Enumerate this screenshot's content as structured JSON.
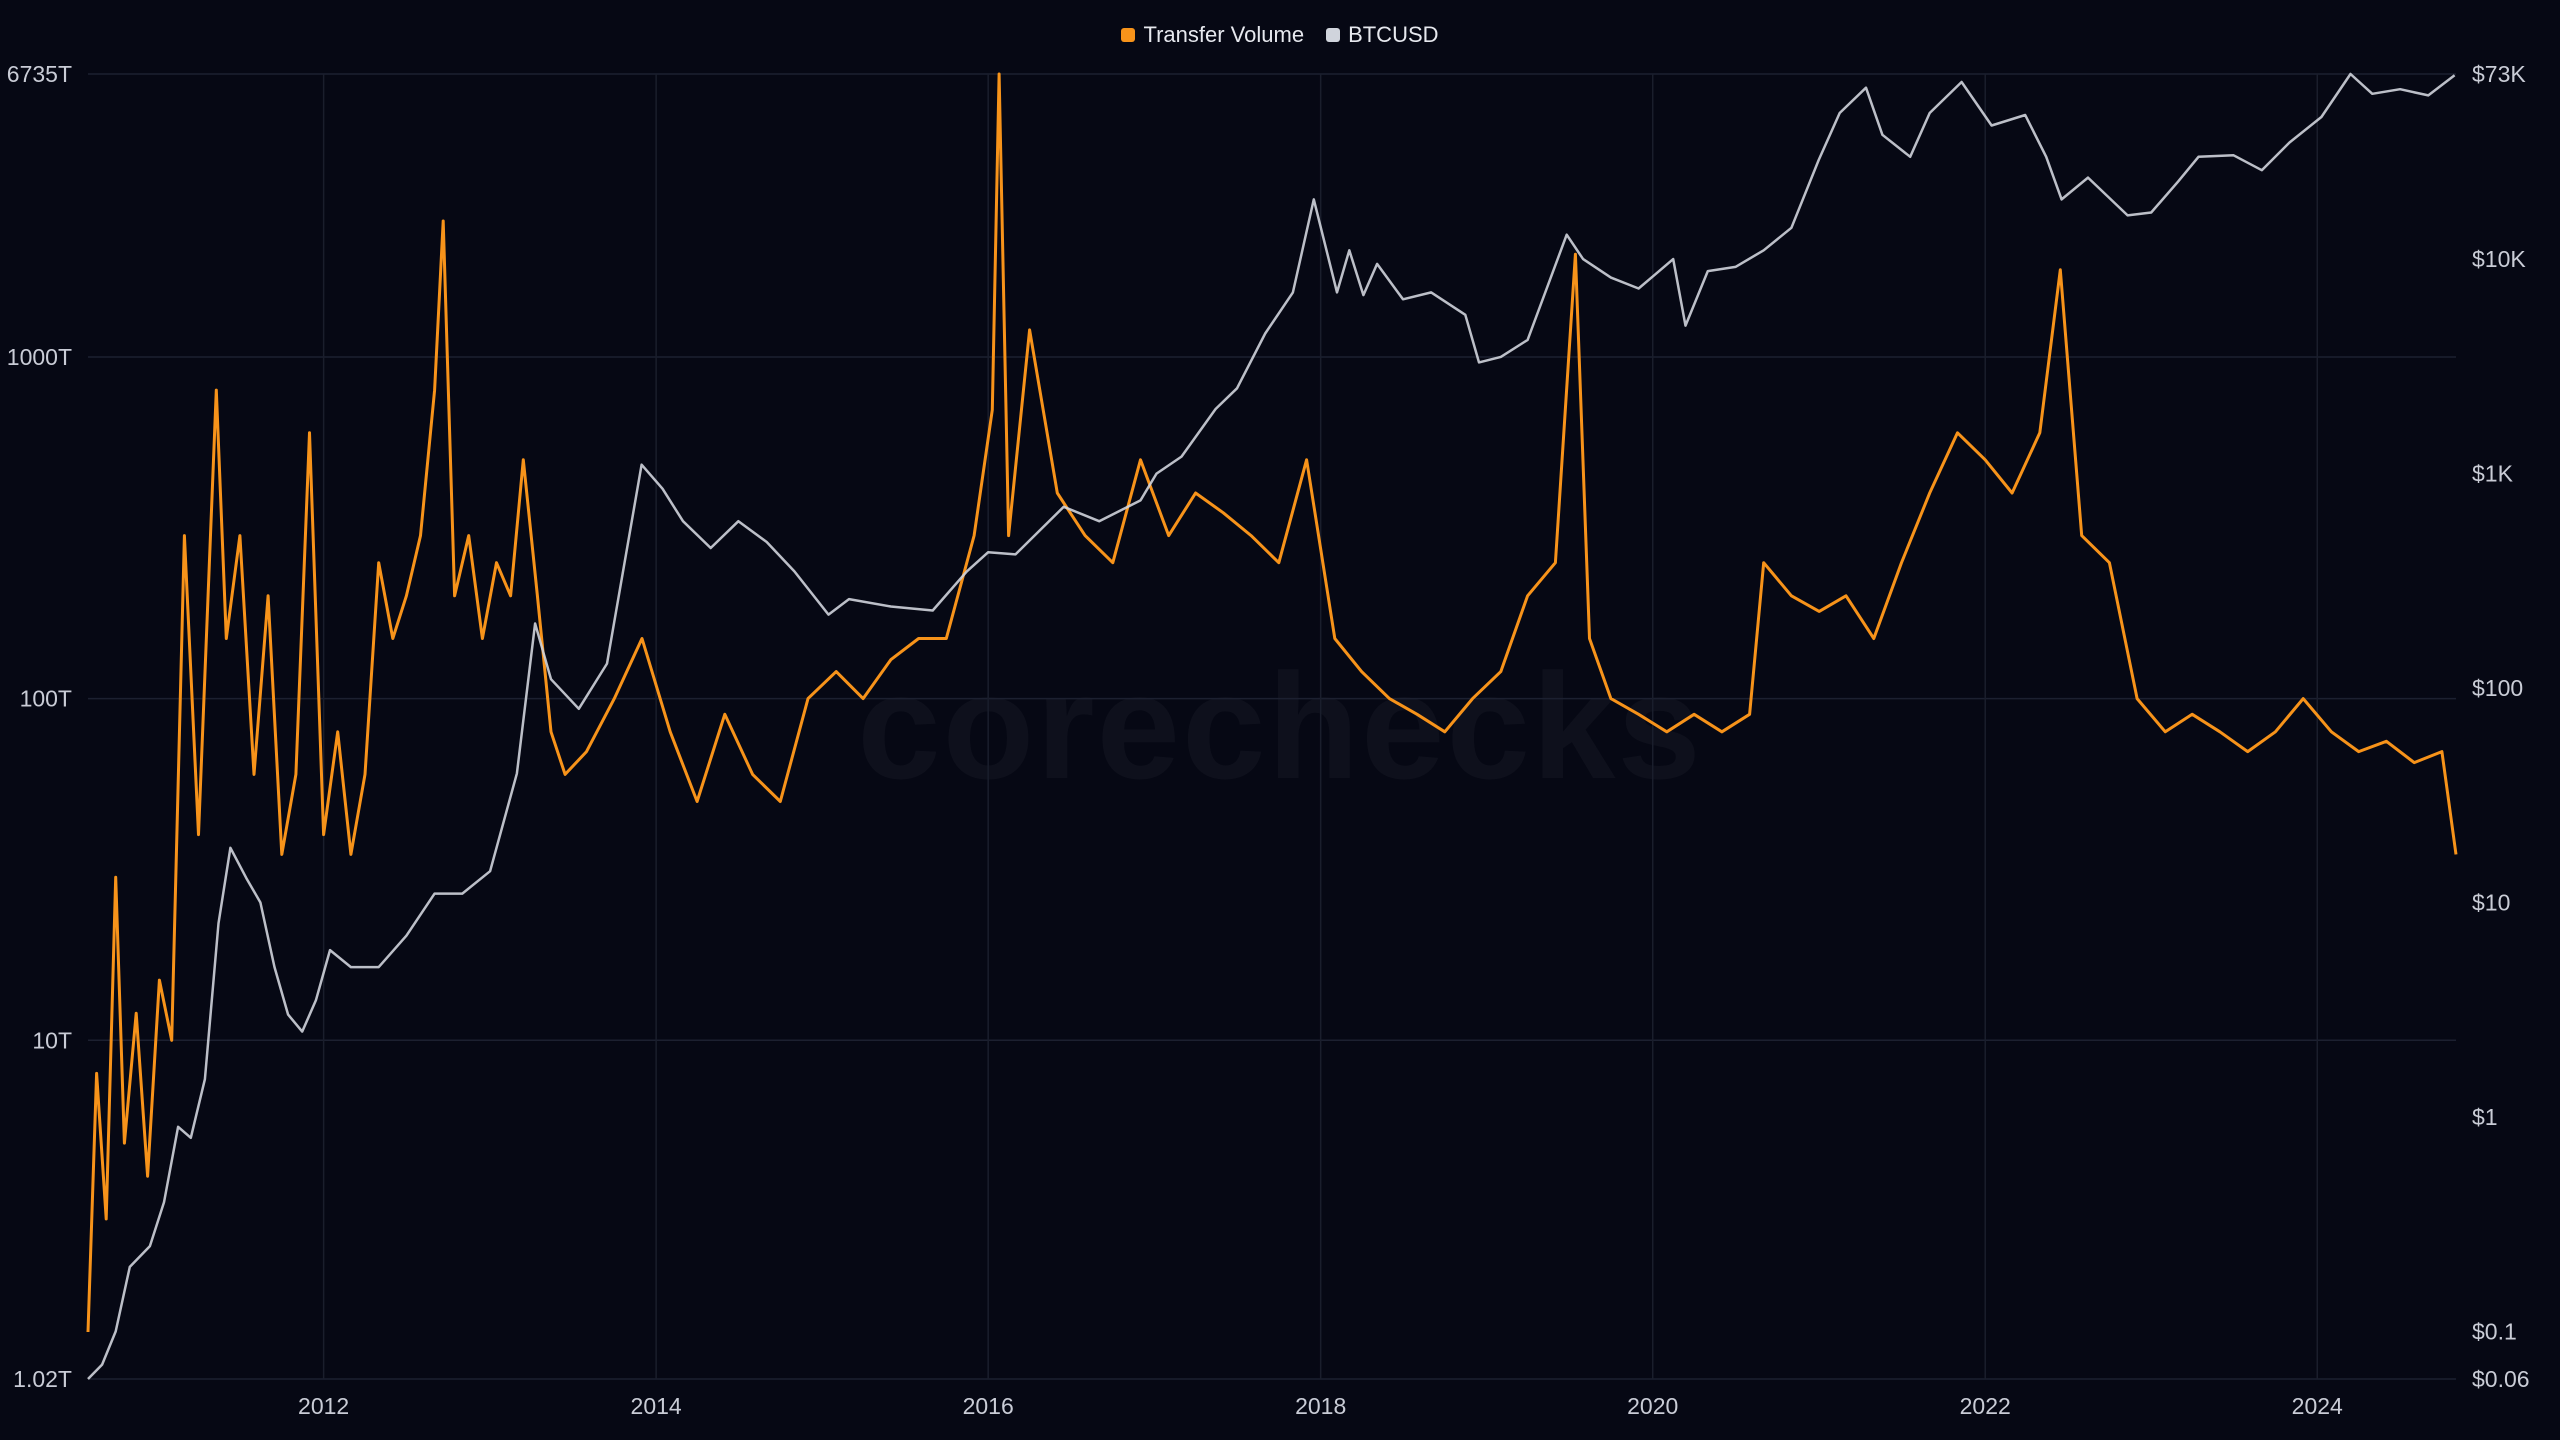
{
  "legend": {
    "items": [
      {
        "label": "Transfer Volume",
        "color": "#f7931a"
      },
      {
        "label": "BTCUSD",
        "color": "#d0d4dc"
      }
    ]
  },
  "watermark": "corechecks",
  "chart_data": {
    "type": "line",
    "grid": true,
    "legend_position": "top-center",
    "x_axis": {
      "type": "date",
      "range": [
        "2010-08-01",
        "2024-11-01"
      ],
      "ticks": [
        "2012",
        "2014",
        "2016",
        "2018",
        "2020",
        "2022",
        "2024"
      ]
    },
    "y_left": {
      "scale": "log",
      "range": [
        1.02,
        6735
      ],
      "unit": "T",
      "tick_labels": [
        "1.02T",
        "10T",
        "100T",
        "1000T",
        "6735T"
      ],
      "tick_values": [
        1.02,
        10,
        100,
        1000,
        6735
      ]
    },
    "y_right": {
      "scale": "log",
      "range": [
        0.06,
        73000
      ],
      "tick_labels": [
        "$0.06",
        "$0.1",
        "$1",
        "$10",
        "$100",
        "$1K",
        "$10K",
        "$73K"
      ],
      "tick_values": [
        0.06,
        0.1,
        1,
        10,
        100,
        1000,
        10000,
        73000
      ]
    },
    "series": [
      {
        "name": "Transfer Volume",
        "axis": "left",
        "color": "#f7931a",
        "points": [
          [
            "2010-08-01",
            1.4
          ],
          [
            "2010-08-20",
            8
          ],
          [
            "2010-09-10",
            3
          ],
          [
            "2010-10-01",
            30
          ],
          [
            "2010-10-20",
            5
          ],
          [
            "2010-11-15",
            12
          ],
          [
            "2010-12-10",
            4
          ],
          [
            "2011-01-05",
            15
          ],
          [
            "2011-02-01",
            10
          ],
          [
            "2011-03-01",
            300
          ],
          [
            "2011-04-01",
            40
          ],
          [
            "2011-05-10",
            800
          ],
          [
            "2011-06-01",
            150
          ],
          [
            "2011-07-01",
            300
          ],
          [
            "2011-08-01",
            60
          ],
          [
            "2011-09-01",
            200
          ],
          [
            "2011-10-01",
            35
          ],
          [
            "2011-11-01",
            60
          ],
          [
            "2011-12-01",
            600
          ],
          [
            "2012-01-01",
            40
          ],
          [
            "2012-02-01",
            80
          ],
          [
            "2012-03-01",
            35
          ],
          [
            "2012-04-01",
            60
          ],
          [
            "2012-05-01",
            250
          ],
          [
            "2012-06-01",
            150
          ],
          [
            "2012-07-01",
            200
          ],
          [
            "2012-08-01",
            300
          ],
          [
            "2012-09-01",
            800
          ],
          [
            "2012-09-20",
            2500
          ],
          [
            "2012-10-15",
            200
          ],
          [
            "2012-11-15",
            300
          ],
          [
            "2012-12-15",
            150
          ],
          [
            "2013-01-15",
            250
          ],
          [
            "2013-02-15",
            200
          ],
          [
            "2013-03-15",
            500
          ],
          [
            "2013-04-15",
            200
          ],
          [
            "2013-05-15",
            80
          ],
          [
            "2013-06-15",
            60
          ],
          [
            "2013-08-01",
            70
          ],
          [
            "2013-10-01",
            100
          ],
          [
            "2013-12-01",
            150
          ],
          [
            "2014-02-01",
            80
          ],
          [
            "2014-04-01",
            50
          ],
          [
            "2014-06-01",
            90
          ],
          [
            "2014-08-01",
            60
          ],
          [
            "2014-10-01",
            50
          ],
          [
            "2014-12-01",
            100
          ],
          [
            "2015-02-01",
            120
          ],
          [
            "2015-04-01",
            100
          ],
          [
            "2015-06-01",
            130
          ],
          [
            "2015-08-01",
            150
          ],
          [
            "2015-10-01",
            150
          ],
          [
            "2015-12-01",
            300
          ],
          [
            "2016-01-10",
            700
          ],
          [
            "2016-01-25",
            6735
          ],
          [
            "2016-02-15",
            300
          ],
          [
            "2016-04-01",
            1200
          ],
          [
            "2016-06-01",
            400
          ],
          [
            "2016-08-01",
            300
          ],
          [
            "2016-10-01",
            250
          ],
          [
            "2016-12-01",
            500
          ],
          [
            "2017-02-01",
            300
          ],
          [
            "2017-04-01",
            400
          ],
          [
            "2017-06-01",
            350
          ],
          [
            "2017-08-01",
            300
          ],
          [
            "2017-10-01",
            250
          ],
          [
            "2017-12-01",
            500
          ],
          [
            "2018-02-01",
            150
          ],
          [
            "2018-04-01",
            120
          ],
          [
            "2018-06-01",
            100
          ],
          [
            "2018-08-01",
            90
          ],
          [
            "2018-10-01",
            80
          ],
          [
            "2018-12-01",
            100
          ],
          [
            "2019-02-01",
            120
          ],
          [
            "2019-04-01",
            200
          ],
          [
            "2019-06-01",
            250
          ],
          [
            "2019-07-15",
            2000
          ],
          [
            "2019-08-15",
            150
          ],
          [
            "2019-10-01",
            100
          ],
          [
            "2019-12-01",
            90
          ],
          [
            "2020-02-01",
            80
          ],
          [
            "2020-04-01",
            90
          ],
          [
            "2020-06-01",
            80
          ],
          [
            "2020-08-01",
            90
          ],
          [
            "2020-09-01",
            250
          ],
          [
            "2020-11-01",
            200
          ],
          [
            "2021-01-01",
            180
          ],
          [
            "2021-03-01",
            200
          ],
          [
            "2021-05-01",
            150
          ],
          [
            "2021-07-01",
            250
          ],
          [
            "2021-09-01",
            400
          ],
          [
            "2021-11-01",
            600
          ],
          [
            "2022-01-01",
            500
          ],
          [
            "2022-03-01",
            400
          ],
          [
            "2022-05-01",
            600
          ],
          [
            "2022-06-15",
            1800
          ],
          [
            "2022-08-01",
            300
          ],
          [
            "2022-10-01",
            250
          ],
          [
            "2022-12-01",
            100
          ],
          [
            "2023-02-01",
            80
          ],
          [
            "2023-04-01",
            90
          ],
          [
            "2023-06-01",
            80
          ],
          [
            "2023-08-01",
            70
          ],
          [
            "2023-10-01",
            80
          ],
          [
            "2023-12-01",
            100
          ],
          [
            "2024-02-01",
            80
          ],
          [
            "2024-04-01",
            70
          ],
          [
            "2024-06-01",
            75
          ],
          [
            "2024-08-01",
            65
          ],
          [
            "2024-10-01",
            70
          ],
          [
            "2024-11-01",
            35
          ]
        ]
      },
      {
        "name": "BTCUSD",
        "axis": "right",
        "color": "#d0d4dc",
        "points": [
          [
            "2010-08-01",
            0.06
          ],
          [
            "2010-09-01",
            0.07
          ],
          [
            "2010-10-01",
            0.1
          ],
          [
            "2010-11-01",
            0.2
          ],
          [
            "2010-12-15",
            0.25
          ],
          [
            "2011-01-15",
            0.4
          ],
          [
            "2011-02-15",
            0.9
          ],
          [
            "2011-03-15",
            0.8
          ],
          [
            "2011-04-15",
            1.5
          ],
          [
            "2011-05-15",
            8
          ],
          [
            "2011-06-10",
            18
          ],
          [
            "2011-07-15",
            13
          ],
          [
            "2011-08-15",
            10
          ],
          [
            "2011-09-15",
            5
          ],
          [
            "2011-10-15",
            3
          ],
          [
            "2011-11-15",
            2.5
          ],
          [
            "2011-12-15",
            3.5
          ],
          [
            "2012-01-15",
            6
          ],
          [
            "2012-03-01",
            5
          ],
          [
            "2012-05-01",
            5
          ],
          [
            "2012-07-01",
            7
          ],
          [
            "2012-09-01",
            11
          ],
          [
            "2012-11-01",
            11
          ],
          [
            "2013-01-01",
            14
          ],
          [
            "2013-03-01",
            40
          ],
          [
            "2013-04-10",
            200
          ],
          [
            "2013-05-15",
            110
          ],
          [
            "2013-07-15",
            80
          ],
          [
            "2013-09-15",
            130
          ],
          [
            "2013-11-30",
            1100
          ],
          [
            "2014-01-15",
            850
          ],
          [
            "2014-03-01",
            600
          ],
          [
            "2014-05-01",
            450
          ],
          [
            "2014-07-01",
            600
          ],
          [
            "2014-09-01",
            480
          ],
          [
            "2014-11-01",
            350
          ],
          [
            "2015-01-15",
            220
          ],
          [
            "2015-03-01",
            260
          ],
          [
            "2015-06-01",
            240
          ],
          [
            "2015-09-01",
            230
          ],
          [
            "2015-11-15",
            350
          ],
          [
            "2016-01-01",
            430
          ],
          [
            "2016-03-01",
            420
          ],
          [
            "2016-06-15",
            700
          ],
          [
            "2016-09-01",
            600
          ],
          [
            "2016-12-01",
            750
          ],
          [
            "2017-01-05",
            1000
          ],
          [
            "2017-03-01",
            1200
          ],
          [
            "2017-05-15",
            2000
          ],
          [
            "2017-07-01",
            2500
          ],
          [
            "2017-09-01",
            4500
          ],
          [
            "2017-11-01",
            7000
          ],
          [
            "2017-12-17",
            19000
          ],
          [
            "2018-02-06",
            7000
          ],
          [
            "2018-03-05",
            11000
          ],
          [
            "2018-04-05",
            6800
          ],
          [
            "2018-05-05",
            9500
          ],
          [
            "2018-07-01",
            6500
          ],
          [
            "2018-09-01",
            7000
          ],
          [
            "2018-11-15",
            5500
          ],
          [
            "2018-12-15",
            3300
          ],
          [
            "2019-02-01",
            3500
          ],
          [
            "2019-04-01",
            4200
          ],
          [
            "2019-06-26",
            13000
          ],
          [
            "2019-08-01",
            10000
          ],
          [
            "2019-10-01",
            8200
          ],
          [
            "2019-12-01",
            7300
          ],
          [
            "2020-02-15",
            10000
          ],
          [
            "2020-03-13",
            4900
          ],
          [
            "2020-05-01",
            8800
          ],
          [
            "2020-07-01",
            9200
          ],
          [
            "2020-09-01",
            11000
          ],
          [
            "2020-11-01",
            14000
          ],
          [
            "2020-12-31",
            29000
          ],
          [
            "2021-02-15",
            48000
          ],
          [
            "2021-04-14",
            63000
          ],
          [
            "2021-05-20",
            38000
          ],
          [
            "2021-07-20",
            30000
          ],
          [
            "2021-09-01",
            48000
          ],
          [
            "2021-11-10",
            67000
          ],
          [
            "2022-01-15",
            42000
          ],
          [
            "2022-03-30",
            47000
          ],
          [
            "2022-05-15",
            30000
          ],
          [
            "2022-06-18",
            19000
          ],
          [
            "2022-08-15",
            24000
          ],
          [
            "2022-11-10",
            16000
          ],
          [
            "2023-01-01",
            16500
          ],
          [
            "2023-03-01",
            23000
          ],
          [
            "2023-04-15",
            30000
          ],
          [
            "2023-07-01",
            30500
          ],
          [
            "2023-09-01",
            26000
          ],
          [
            "2023-11-01",
            35000
          ],
          [
            "2024-01-10",
            46000
          ],
          [
            "2024-03-14",
            73000
          ],
          [
            "2024-05-01",
            59000
          ],
          [
            "2024-07-01",
            62000
          ],
          [
            "2024-09-01",
            58000
          ],
          [
            "2024-10-29",
            72000
          ]
        ]
      }
    ]
  }
}
